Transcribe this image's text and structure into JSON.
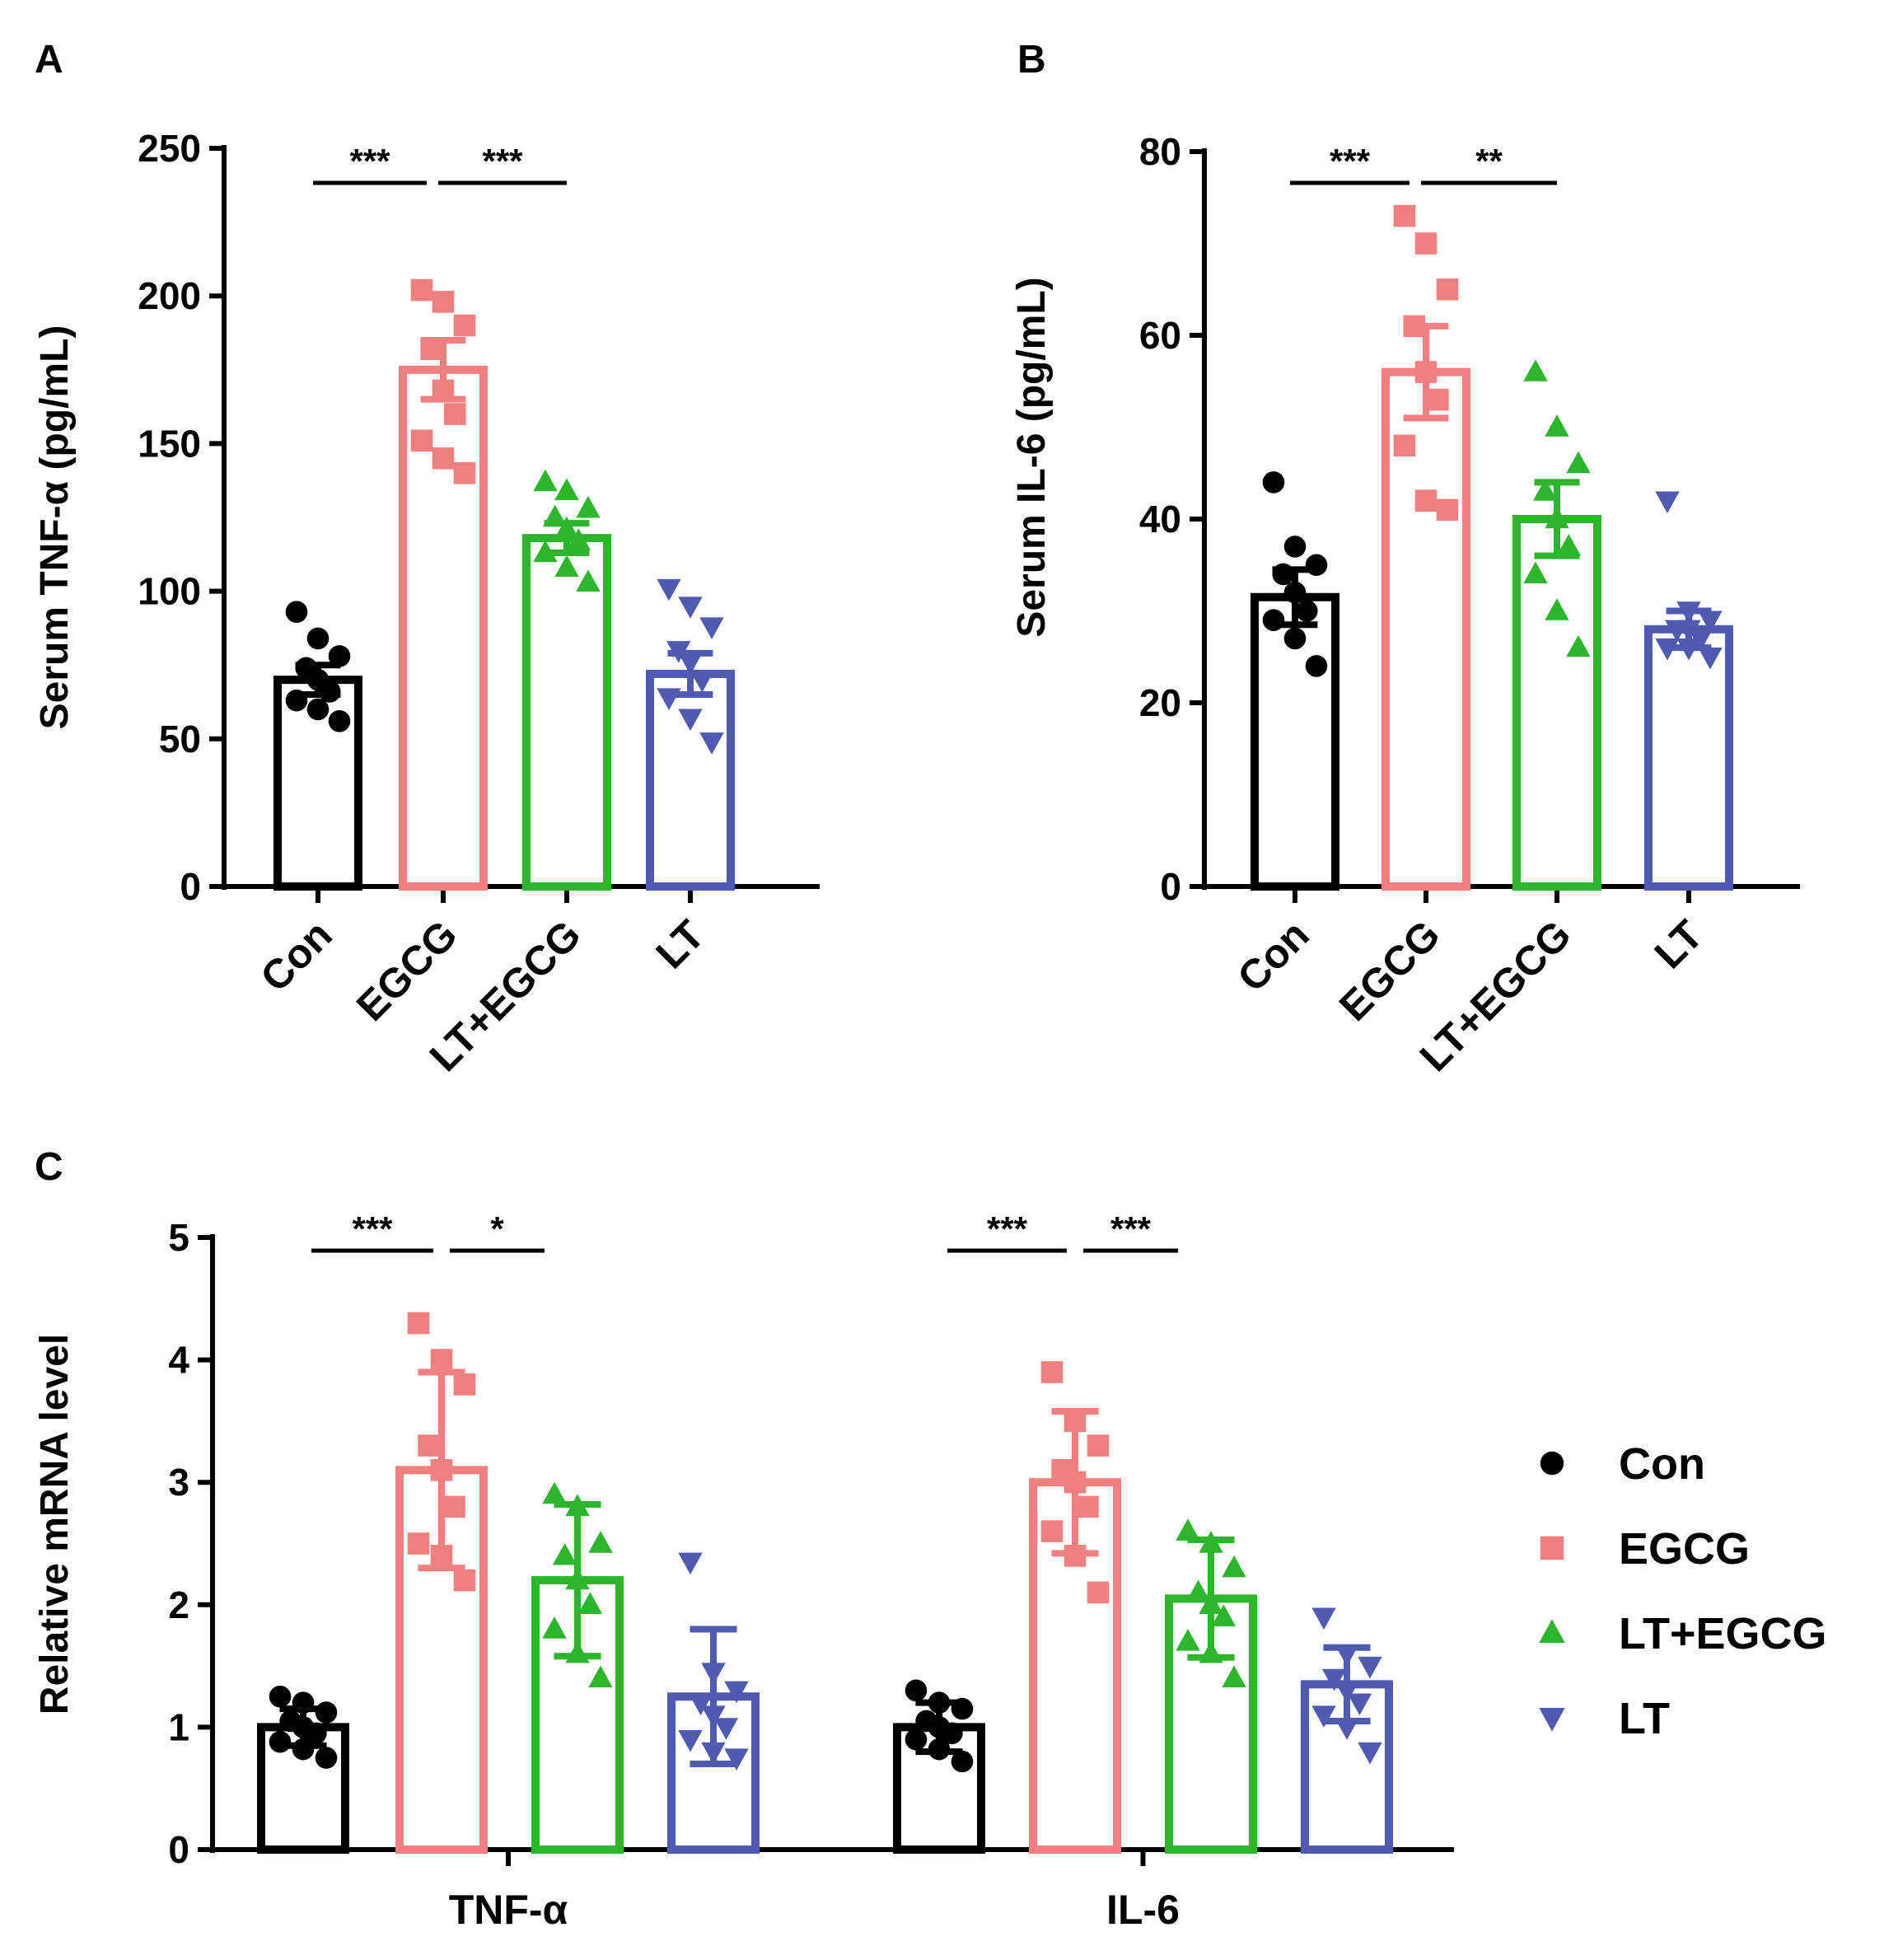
{
  "colors": {
    "Con": "#000000",
    "EGCG": "#F08080",
    "LT+EGCG": "#2DB52D",
    "LT": "#4F5BB0"
  },
  "markers": {
    "Con": "circle",
    "EGCG": "square",
    "LT+EGCG": "triangle-up",
    "LT": "triangle-down"
  },
  "chart_data": [
    {
      "panel": "A",
      "type": "bar",
      "ylabel": "Serum TNF-α (pg/mL)",
      "ylim": [
        0,
        250
      ],
      "yticks": [
        0,
        50,
        100,
        150,
        200,
        250
      ],
      "categories": [
        "Con",
        "EGCG",
        "LT+EGCG",
        "LT"
      ],
      "values": [
        70,
        175,
        118,
        72
      ],
      "errors": [
        5,
        10,
        5,
        7
      ],
      "points": [
        [
          93,
          84,
          78,
          74,
          70,
          66,
          63,
          60,
          56
        ],
        [
          202,
          198,
          190,
          182,
          168,
          160,
          151,
          145,
          140
        ],
        [
          137,
          134,
          128,
          125,
          121,
          117,
          113,
          108,
          103
        ],
        [
          101,
          95,
          88,
          80,
          76,
          70,
          64,
          57,
          49
        ]
      ],
      "significance": [
        {
          "from": 0,
          "to": 1,
          "label": "***"
        },
        {
          "from": 1,
          "to": 2,
          "label": "***"
        }
      ]
    },
    {
      "panel": "B",
      "type": "bar",
      "ylabel": "Serum IL-6 (pg/mL)",
      "ylim": [
        0,
        80
      ],
      "yticks": [
        0,
        20,
        40,
        60,
        80
      ],
      "categories": [
        "Con",
        "EGCG",
        "LT+EGCG",
        "LT"
      ],
      "values": [
        31.5,
        56,
        40,
        28
      ],
      "errors": [
        3,
        5,
        4,
        2
      ],
      "points": [
        [
          44,
          37,
          35,
          34,
          32,
          30,
          29,
          27,
          24
        ],
        [
          73,
          70,
          65,
          61,
          56,
          53,
          48,
          42,
          41
        ],
        [
          56,
          50,
          46,
          43,
          40,
          37,
          34,
          30,
          26
        ],
        [
          42,
          30,
          29,
          28,
          28,
          27,
          26,
          26,
          25
        ]
      ],
      "significance": [
        {
          "from": 0,
          "to": 1,
          "label": "***"
        },
        {
          "from": 1,
          "to": 2,
          "label": "**"
        }
      ]
    },
    {
      "panel": "C",
      "type": "bar",
      "ylabel": "Relative mRNA level",
      "ylim": [
        0,
        5
      ],
      "yticks": [
        0,
        1,
        2,
        3,
        4,
        5
      ],
      "categories": [
        "TNF-α",
        "IL-6"
      ],
      "series": [
        {
          "name": "Con",
          "values": [
            1.0,
            1.0
          ],
          "errors": [
            0.15,
            0.2
          ],
          "points": [
            [
              1.25,
              1.2,
              1.12,
              1.05,
              1.0,
              0.95,
              0.88,
              0.82,
              0.75
            ],
            [
              1.3,
              1.2,
              1.15,
              1.05,
              1.0,
              0.95,
              0.9,
              0.82,
              0.72
            ]
          ]
        },
        {
          "name": "EGCG",
          "values": [
            3.1,
            3.0
          ],
          "errors": [
            0.8,
            0.58
          ],
          "points": [
            [
              4.3,
              4.0,
              3.8,
              3.3,
              3.1,
              2.8,
              2.5,
              2.4,
              2.2
            ],
            [
              3.9,
              3.5,
              3.3,
              3.1,
              3.0,
              2.8,
              2.6,
              2.4,
              2.1
            ]
          ]
        },
        {
          "name": "LT+EGCG",
          "values": [
            2.2,
            2.05
          ],
          "errors": [
            0.62,
            0.48
          ],
          "points": [
            [
              2.9,
              2.8,
              2.5,
              2.4,
              2.2,
              2.0,
              1.8,
              1.6,
              1.4
            ],
            [
              2.6,
              2.5,
              2.3,
              2.1,
              2.0,
              1.9,
              1.7,
              1.6,
              1.4
            ]
          ]
        },
        {
          "name": "LT",
          "values": [
            1.25,
            1.35
          ],
          "errors": [
            0.55,
            0.3
          ],
          "points": [
            [
              2.35,
              1.45,
              1.3,
              1.2,
              1.1,
              1.0,
              0.9,
              0.8,
              0.75
            ],
            [
              1.9,
              1.6,
              1.5,
              1.4,
              1.3,
              1.2,
              1.1,
              1.0,
              0.8
            ]
          ]
        }
      ],
      "significance": [
        {
          "group": 0,
          "from": 0,
          "to": 1,
          "label": "***"
        },
        {
          "group": 0,
          "from": 1,
          "to": 2,
          "label": "*"
        },
        {
          "group": 1,
          "from": 0,
          "to": 1,
          "label": "***"
        },
        {
          "group": 1,
          "from": 1,
          "to": 2,
          "label": "***"
        }
      ],
      "legend": [
        "Con",
        "EGCG",
        "LT+EGCG",
        "LT"
      ],
      "legend_position": "right"
    }
  ]
}
